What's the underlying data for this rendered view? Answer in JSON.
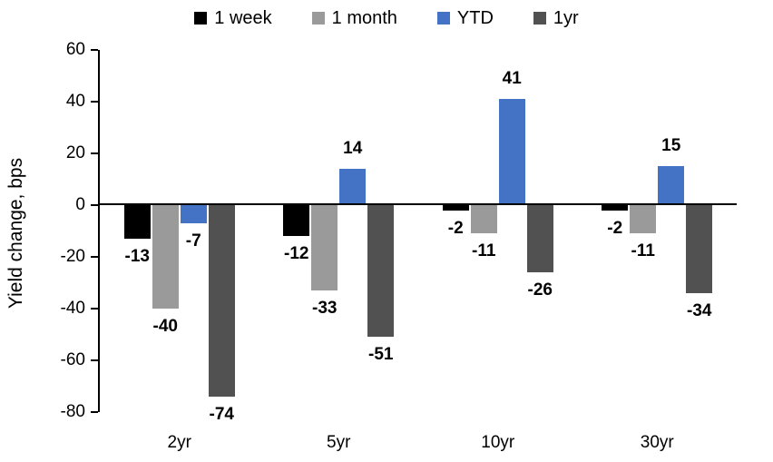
{
  "chart_data": {
    "type": "bar",
    "title": "",
    "ylabel": "Yield change, bps",
    "xlabel": "",
    "categories": [
      "2yr",
      "5yr",
      "10yr",
      "30yr"
    ],
    "series": [
      {
        "name": "1 week",
        "color": "#000000",
        "values": [
          -13,
          -12,
          -2,
          -2
        ]
      },
      {
        "name": "1 month",
        "color": "#9A9A9A",
        "values": [
          -40,
          -33,
          -11,
          -11
        ]
      },
      {
        "name": "YTD",
        "color": "#4472C4",
        "values": [
          -7,
          14,
          41,
          15
        ]
      },
      {
        "name": "1yr",
        "color": "#515151",
        "values": [
          -74,
          -51,
          -26,
          -34
        ]
      }
    ],
    "ylim": [
      -80,
      60
    ],
    "yticks": [
      60,
      40,
      20,
      0,
      -20,
      -40,
      -60,
      -80
    ],
    "grid": false,
    "legend_position": "top",
    "data_labels": true,
    "axis_color": "#000000"
  }
}
